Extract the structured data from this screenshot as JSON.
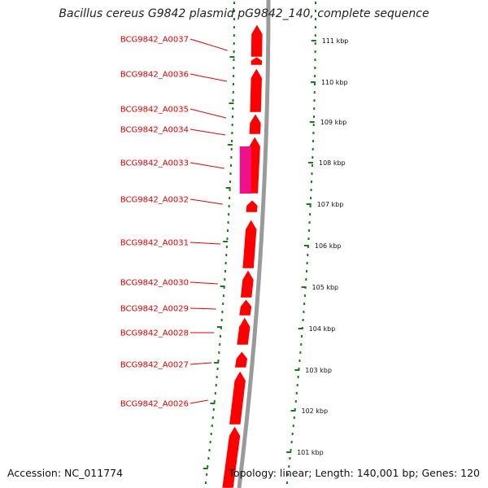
{
  "title": "Bacillus cereus G9842 plasmid pG9842_140, complete sequence",
  "footer": {
    "accession": "Accession: NC_011774",
    "summary": "Topology: linear; Length: 140,001 bp; Genes: 120"
  },
  "colors": {
    "gene": "#ff0000",
    "gene_highlight": "#ee1188",
    "backbone": "#9a9a9a",
    "tick": "#1a7a1a",
    "label": "#e00000"
  },
  "kbp_ticks": [
    {
      "label": "111 kbp",
      "value": 111
    },
    {
      "label": "110 kbp",
      "value": 110
    },
    {
      "label": "109 kbp",
      "value": 109
    },
    {
      "label": "108 kbp",
      "value": 108
    },
    {
      "label": "107 kbp",
      "value": 107
    },
    {
      "label": "106 kbp",
      "value": 106
    },
    {
      "label": "105 kbp",
      "value": 105
    },
    {
      "label": "104 kbp",
      "value": 104
    },
    {
      "label": "103 kbp",
      "value": 103
    },
    {
      "label": "102 kbp",
      "value": 102
    },
    {
      "label": "101 kbp",
      "value": 101
    }
  ],
  "genes": [
    {
      "name": "BCG9842_A0037"
    },
    {
      "name": "BCG9842_A0036"
    },
    {
      "name": "BCG9842_A0035"
    },
    {
      "name": "BCG9842_A0034"
    },
    {
      "name": "BCG9842_A0033"
    },
    {
      "name": "BCG9842_A0032"
    },
    {
      "name": "BCG9842_A0031"
    },
    {
      "name": "BCG9842_A0030"
    },
    {
      "name": "BCG9842_A0029"
    },
    {
      "name": "BCG9842_A0028"
    },
    {
      "name": "BCG9842_A0027"
    },
    {
      "name": "BCG9842_A0026"
    }
  ]
}
